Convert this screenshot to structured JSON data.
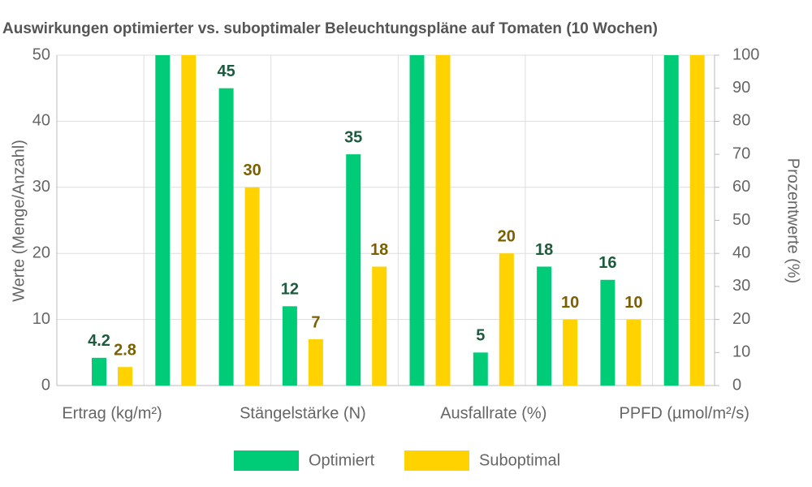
{
  "chart_data": {
    "type": "bar",
    "title": "Auswirkungen optimierter vs. suboptimaler Beleuchtungspläne auf Tomaten (10 Wochen)",
    "y_label": "Werte (Menge/Anzahl)",
    "y2_label": "Prozentwerte (%)",
    "categories": [
      "Ertrag (kg/m²)",
      null,
      null,
      "Stängelstärke (N)",
      null,
      null,
      "Ausfallrate (%)",
      null,
      null,
      "PPFD (µmol/m²/s)"
    ],
    "series": [
      {
        "name": "Optimiert",
        "color": "#00cc77",
        "label_color": "#1e5a3e",
        "values": [
          4.2,
          50,
          45,
          12,
          35,
          50,
          5,
          18,
          16,
          50
        ]
      },
      {
        "name": "Suboptimal",
        "color": "#ffd200",
        "label_color": "#7a6000",
        "values": [
          2.8,
          50,
          30,
          7,
          18,
          50,
          20,
          10,
          10,
          50
        ]
      }
    ],
    "ylim": [
      0,
      50
    ],
    "yticks": [
      0,
      10,
      20,
      30,
      40,
      50
    ],
    "y2lim": [
      0,
      100
    ],
    "y2ticks": [
      0,
      10,
      20,
      30,
      40,
      50,
      60,
      70,
      80,
      90,
      100
    ],
    "grid": true,
    "legend": "bottom"
  }
}
